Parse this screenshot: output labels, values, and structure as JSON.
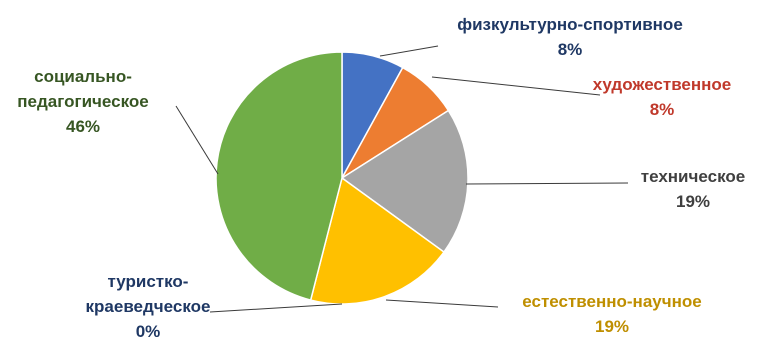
{
  "chart_data": {
    "type": "pie",
    "title": "",
    "slices": [
      {
        "name": "физкультурно-спортивное",
        "percent_label": "8%",
        "value": 8,
        "color": "#4472c4",
        "label_color": "#1f3864"
      },
      {
        "name": "художественное",
        "percent_label": "8%",
        "value": 8,
        "color": "#ed7d31",
        "label_color": "#c0392b"
      },
      {
        "name": "техническое",
        "percent_label": "19%",
        "value": 19,
        "color": "#a5a5a5",
        "label_color": "#404040"
      },
      {
        "name": "естественно-научное",
        "percent_label": "19%",
        "value": 19,
        "color": "#ffc000",
        "label_color": "#bf8f00"
      },
      {
        "name": "туристко-краеведческое",
        "percent_label": "0%",
        "value": 0,
        "color": "#5b9bd5",
        "label_color": "#1f3864"
      },
      {
        "name": "социально-педагогическое",
        "percent_label": "46%",
        "value": 46,
        "color": "#70ad47",
        "label_color": "#375623"
      }
    ],
    "label_lines": {
      "физкультурно-спортивное": [
        "физкультурно-спортивное",
        "8%"
      ],
      "художественное": [
        "художественное",
        "8%"
      ],
      "техническое": [
        "техническое",
        "19%"
      ],
      "естественно-научное": [
        "естественно-научное",
        "19%"
      ],
      "туристко-краеведческое": [
        "туристко-",
        "краеведческое",
        "0%"
      ],
      "социально-педагогическое": [
        "социально-",
        "педагогическое",
        "46%"
      ]
    },
    "legend": "none"
  }
}
